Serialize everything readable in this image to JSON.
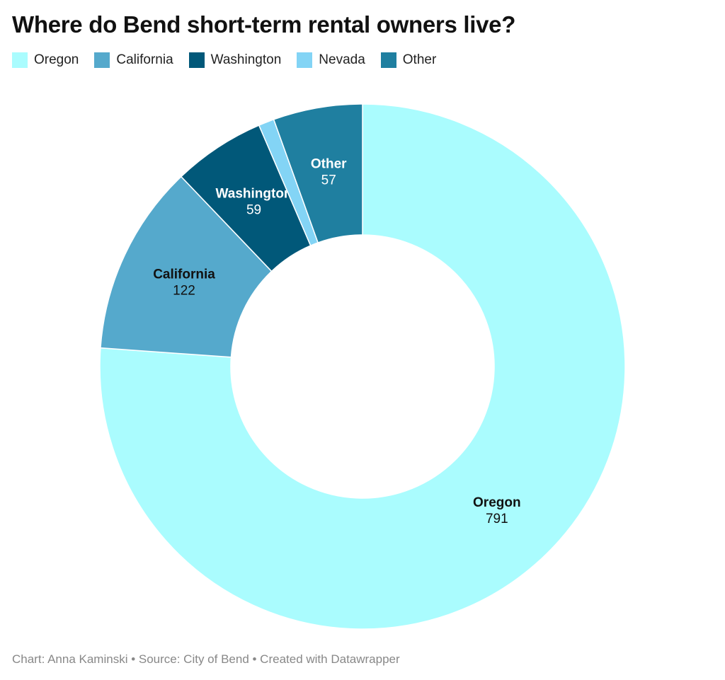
{
  "chart_data": {
    "type": "donut",
    "title": "Where do Bend short-term rental owners live?",
    "categories": [
      "Oregon",
      "California",
      "Washington",
      "Nevada",
      "Other"
    ],
    "values": [
      791,
      122,
      59,
      10,
      57
    ],
    "colors": [
      "#aafcfe",
      "#55a9cc",
      "#015879",
      "#83d4f5",
      "#1f7fa0"
    ],
    "footer": "Chart: Anna Kaminski • Source: City of Bend • Created with Datawrapper"
  }
}
